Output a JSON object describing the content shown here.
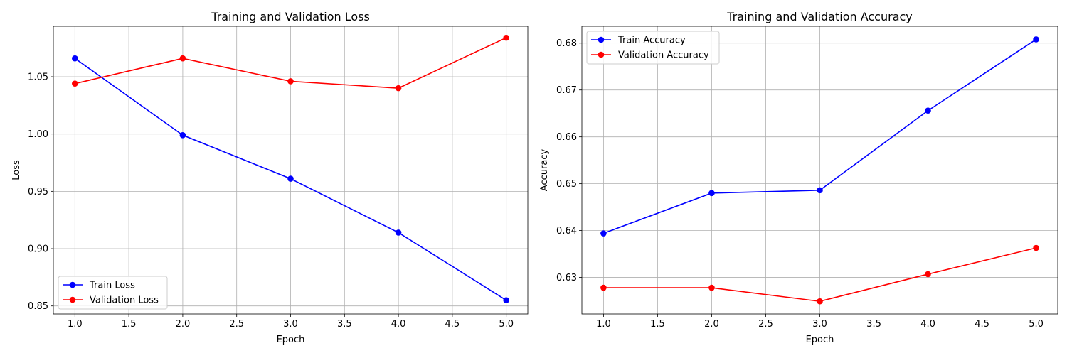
{
  "chart_data": [
    {
      "type": "line",
      "title": "Training and Validation Loss",
      "xlabel": "Epoch",
      "ylabel": "Loss",
      "x": [
        1,
        2,
        3,
        4,
        5
      ],
      "xlim": [
        0.8,
        5.2
      ],
      "ylim": [
        0.843,
        1.094
      ],
      "xticks": [
        1.0,
        1.5,
        2.0,
        2.5,
        3.0,
        3.5,
        4.0,
        4.5,
        5.0
      ],
      "xtick_labels": [
        "1.0",
        "1.5",
        "2.0",
        "2.5",
        "3.0",
        "3.5",
        "4.0",
        "4.5",
        "5.0"
      ],
      "yticks": [
        0.85,
        0.9,
        0.95,
        1.0,
        1.05
      ],
      "ytick_labels": [
        "0.85",
        "0.90",
        "0.95",
        "1.00",
        "1.05"
      ],
      "grid": true,
      "legend_position": "lower-left",
      "series": [
        {
          "name": "Train Loss",
          "color": "#0000ff",
          "values": [
            1.066,
            0.999,
            0.961,
            0.914,
            0.855
          ]
        },
        {
          "name": "Validation Loss",
          "color": "#ff0000",
          "values": [
            1.044,
            1.066,
            1.046,
            1.04,
            1.084
          ]
        }
      ]
    },
    {
      "type": "line",
      "title": "Training and Validation Accuracy",
      "xlabel": "Epoch",
      "ylabel": "Accuracy",
      "x": [
        1,
        2,
        3,
        4,
        5
      ],
      "xlim": [
        0.8,
        5.2
      ],
      "ylim": [
        0.6222,
        0.6836
      ],
      "xticks": [
        1.0,
        1.5,
        2.0,
        2.5,
        3.0,
        3.5,
        4.0,
        4.5,
        5.0
      ],
      "xtick_labels": [
        "1.0",
        "1.5",
        "2.0",
        "2.5",
        "3.0",
        "3.5",
        "4.0",
        "4.5",
        "5.0"
      ],
      "yticks": [
        0.63,
        0.64,
        0.65,
        0.66,
        0.67,
        0.68
      ],
      "ytick_labels": [
        "0.63",
        "0.64",
        "0.65",
        "0.66",
        "0.67",
        "0.68"
      ],
      "grid": true,
      "legend_position": "upper-left",
      "series": [
        {
          "name": "Train Accuracy",
          "color": "#0000ff",
          "values": [
            0.6394,
            0.648,
            0.6486,
            0.6656,
            0.6808
          ]
        },
        {
          "name": "Validation Accuracy",
          "color": "#ff0000",
          "values": [
            0.6278,
            0.6278,
            0.6249,
            0.6307,
            0.6363
          ]
        }
      ]
    }
  ]
}
